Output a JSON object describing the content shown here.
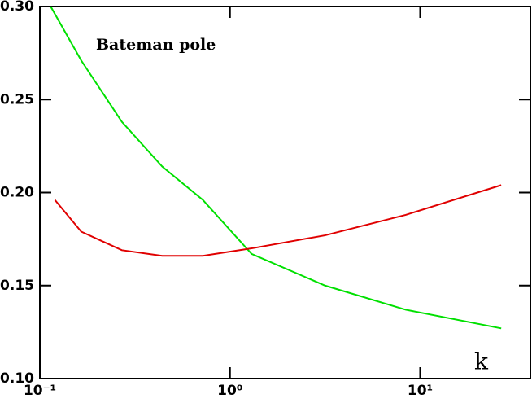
{
  "chart_data": {
    "type": "line",
    "annotations": [
      "Bateman pole",
      "k"
    ],
    "xscale": "log",
    "xlim": [
      0.1,
      38
    ],
    "xticks": [
      {
        "value": 0.1,
        "label": "10⁻¹"
      },
      {
        "value": 1,
        "label": "10⁰"
      },
      {
        "value": 10,
        "label": "10¹"
      }
    ],
    "ylim": [
      0.1,
      0.3
    ],
    "yticks": [
      {
        "value": 0.1,
        "label": "0.10"
      },
      {
        "value": 0.15,
        "label": "0.15"
      },
      {
        "value": 0.2,
        "label": "0.20"
      },
      {
        "value": 0.25,
        "label": "0.25"
      },
      {
        "value": 0.3,
        "label": "0.30"
      }
    ],
    "series": [
      {
        "color": "#00e000",
        "x": [
          0.114,
          0.165,
          0.27,
          0.44,
          0.72,
          1.3,
          3.16,
          8.4,
          26.7
        ],
        "values": [
          0.3,
          0.271,
          0.238,
          0.214,
          0.196,
          0.167,
          0.15,
          0.137,
          0.127
        ]
      },
      {
        "color": "#e00000",
        "x": [
          0.12,
          0.165,
          0.27,
          0.44,
          0.72,
          1.3,
          3.16,
          8.4,
          26.7
        ],
        "values": [
          0.196,
          0.179,
          0.169,
          0.166,
          0.166,
          0.17,
          0.177,
          0.188,
          0.204
        ]
      }
    ]
  }
}
